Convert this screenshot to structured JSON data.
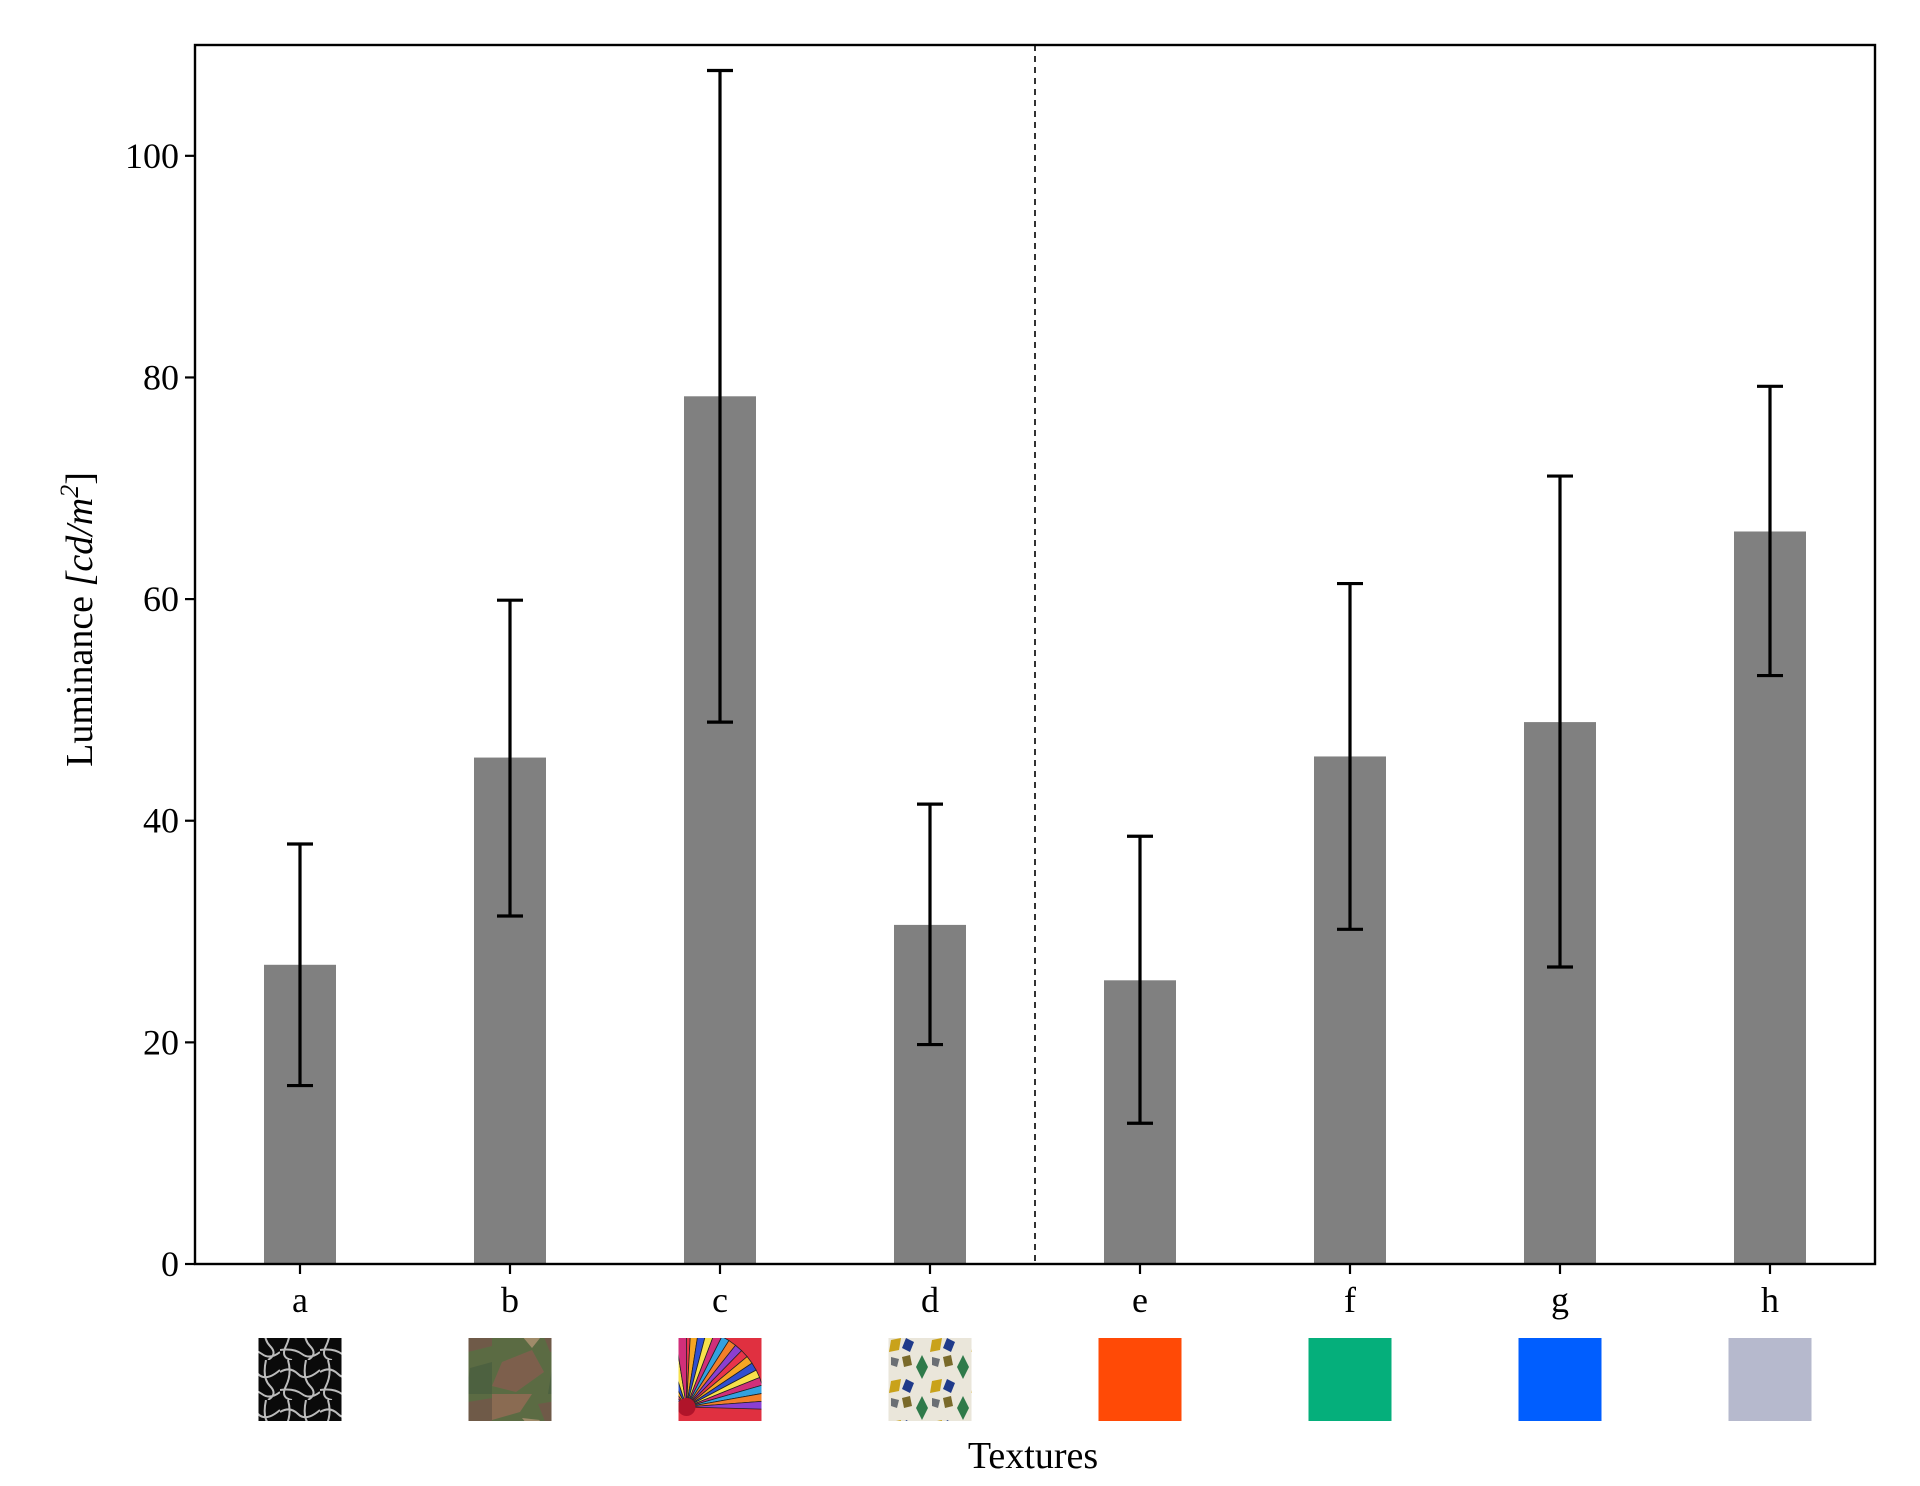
{
  "chart_data": {
    "type": "bar",
    "xlabel": "Textures",
    "ylabel": "Luminance",
    "ylabel_unit": "[cd/m",
    "ylabel_unit_exp": "2",
    "ylabel_unit_close": "]",
    "categories": [
      "a",
      "b",
      "c",
      "d",
      "e",
      "f",
      "g",
      "h"
    ],
    "values": [
      27.0,
      45.7,
      78.3,
      30.6,
      25.6,
      45.8,
      48.9,
      66.1
    ],
    "error_low": [
      16.1,
      31.4,
      48.9,
      19.8,
      12.7,
      30.2,
      26.8,
      53.1
    ],
    "error_high": [
      37.9,
      59.9,
      107.7,
      41.5,
      38.6,
      61.4,
      71.1,
      79.2
    ],
    "ylim": [
      0,
      110
    ],
    "yticks": [
      0,
      20,
      40,
      60,
      80,
      100
    ],
    "bar_color": "#808080",
    "divider_between": [
      "d",
      "e"
    ],
    "grid": false,
    "swatches": [
      {
        "category": "a",
        "kind": "texture",
        "icon": "black-crackle-texture-icon"
      },
      {
        "category": "b",
        "kind": "texture",
        "icon": "camouflage-texture-icon"
      },
      {
        "category": "c",
        "kind": "texture",
        "icon": "colorful-umbrella-texture-icon"
      },
      {
        "category": "d",
        "kind": "texture",
        "icon": "mosaic-tile-texture-icon"
      },
      {
        "category": "e",
        "kind": "color",
        "color": "#FF4A06"
      },
      {
        "category": "f",
        "kind": "color",
        "color": "#05AF7B"
      },
      {
        "category": "g",
        "kind": "color",
        "color": "#005EFF"
      },
      {
        "category": "h",
        "kind": "color",
        "color": "#B6B9CD"
      }
    ]
  }
}
